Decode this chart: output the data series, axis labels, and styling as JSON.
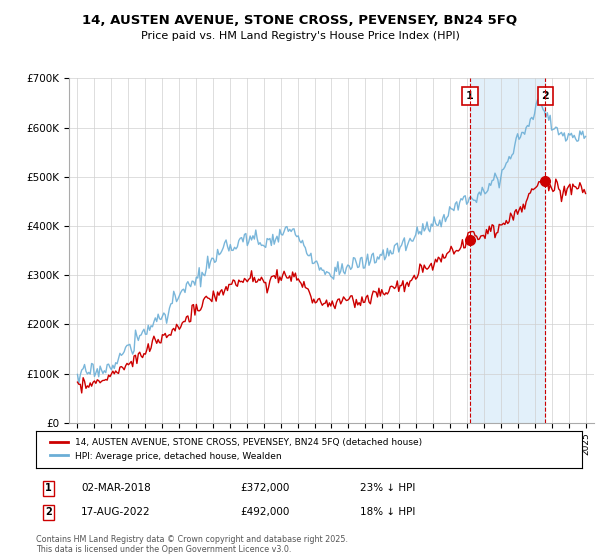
{
  "title": "14, AUSTEN AVENUE, STONE CROSS, PEVENSEY, BN24 5FQ",
  "subtitle": "Price paid vs. HM Land Registry's House Price Index (HPI)",
  "legend_line1": "14, AUSTEN AVENUE, STONE CROSS, PEVENSEY, BN24 5FQ (detached house)",
  "legend_line2": "HPI: Average price, detached house, Wealden",
  "footer": "Contains HM Land Registry data © Crown copyright and database right 2025.\nThis data is licensed under the Open Government Licence v3.0.",
  "annotation1_label": "1",
  "annotation1_date": "02-MAR-2018",
  "annotation1_price": "£372,000",
  "annotation1_pct": "23% ↓ HPI",
  "annotation2_label": "2",
  "annotation2_date": "17-AUG-2022",
  "annotation2_price": "£492,000",
  "annotation2_pct": "18% ↓ HPI",
  "marker1_x": 2018.17,
  "marker1_y": 372000,
  "marker2_x": 2022.63,
  "marker2_y": 492000,
  "hpi_color": "#6baed6",
  "price_color": "#cc0000",
  "vline_color": "#cc0000",
  "shade_color": "#d6eaf8",
  "background_color": "#ffffff",
  "ylim": [
    0,
    700000
  ],
  "xlim": [
    1994.5,
    2025.5
  ],
  "yticks": [
    0,
    100000,
    200000,
    300000,
    400000,
    500000,
    600000,
    700000
  ],
  "ylabels": [
    "£0",
    "£100K",
    "£200K",
    "£300K",
    "£400K",
    "£500K",
    "£600K",
    "£700K"
  ]
}
